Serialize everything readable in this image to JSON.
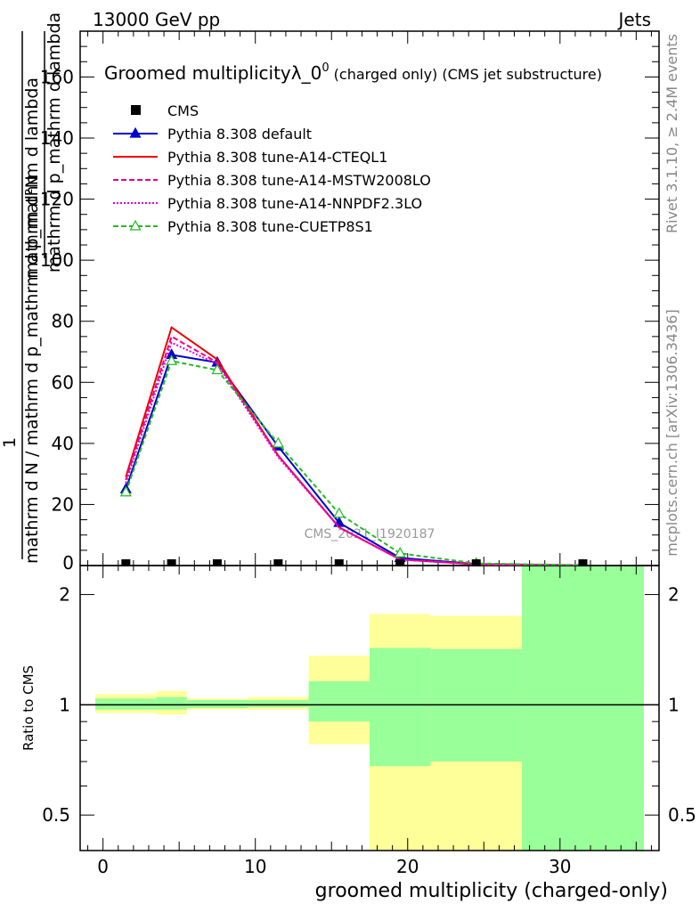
{
  "header": {
    "left": "13000 GeV pp",
    "right": "Jets"
  },
  "title": {
    "main": "Groomed multiplicityλ_0",
    "sup": "0",
    "suffix": " (charged only) (CMS jet substructure)"
  },
  "ylabel_top": {
    "numerator": "mathrm d²N",
    "denominator": "mathrm d p_mathrm d lambda"
  },
  "ylabel_full": {
    "numerator": "1",
    "denominator": "mathrm d N / mathrm d p_mathrm d p_mathrm d lambda"
  },
  "ratio_ylabel": "Ratio to CMS",
  "xlabel": "groomed multiplicity (charged-only)",
  "side_labels": {
    "rivet": "Rivet 3.1.10, ≥ 2.4M events",
    "mcplots": "mcplots.cern.ch [arXiv:1306.3436]"
  },
  "watermark": "CMS_2021_I1920187",
  "legend": [
    {
      "label": "CMS",
      "color": "#000000",
      "style": "square"
    },
    {
      "label": "Pythia 8.308 default",
      "color": "#0000cc",
      "style": "solid-triangle"
    },
    {
      "label": "Pythia 8.308 tune-A14-CTEQL1",
      "color": "#ee0000",
      "style": "solid"
    },
    {
      "label": "Pythia 8.308 tune-A14-MSTW2008LO",
      "color": "#ee0088",
      "style": "dashed"
    },
    {
      "label": "Pythia 8.308 tune-A14-NNPDF2.3LO",
      "color": "#dd00dd",
      "style": "dotted"
    },
    {
      "label": "Pythia 8.308 tune-CUETP8S1",
      "color": "#22bb22",
      "style": "dashed-open-triangle"
    }
  ],
  "chart_data": {
    "type": "line",
    "x": [
      1.5,
      4.5,
      7.5,
      11.5,
      15.5,
      19.5,
      24.5,
      31.5
    ],
    "bin_edges": [
      -0.5,
      3.5,
      5.5,
      9.5,
      13.5,
      17.5,
      21.5,
      27.5,
      35.5
    ],
    "xlim": [
      -1.5,
      36.5
    ],
    "ylim": [
      0,
      175
    ],
    "yticks": [
      20,
      40,
      60,
      80,
      100,
      120,
      140,
      160
    ],
    "xticks": [
      0,
      10,
      20,
      30
    ],
    "grid": false,
    "legend_position": "top-left",
    "data": {
      "name": "CMS",
      "values": [
        0.3,
        0.3,
        0.3,
        0.3,
        0.3,
        0.3,
        0.2,
        0.2
      ]
    },
    "series": [
      {
        "name": "Pythia 8.308 default",
        "color": "#0000cc",
        "dash": "",
        "marker": "filled-triangle",
        "values": [
          25,
          69,
          66.5,
          39,
          14,
          2.5,
          0.5,
          0.1
        ]
      },
      {
        "name": "Pythia 8.308 tune-A14-CTEQL1",
        "color": "#ee0000",
        "dash": "",
        "marker": "none",
        "values": [
          29,
          78,
          67.5,
          36,
          12.5,
          2,
          0.4,
          0.1
        ]
      },
      {
        "name": "Pythia 8.308 tune-A14-MSTW2008LO",
        "color": "#ee0088",
        "dash": "6,3",
        "marker": "none",
        "values": [
          28,
          75,
          66.5,
          36,
          12.5,
          2,
          0.4,
          0.1
        ]
      },
      {
        "name": "Pythia 8.308 tune-A14-NNPDF2.3LO",
        "color": "#dd00dd",
        "dash": "2,2",
        "marker": "none",
        "values": [
          27,
          73,
          66,
          35.5,
          12.5,
          2,
          0.4,
          0.1
        ]
      },
      {
        "name": "Pythia 8.308 tune-CUETP8S1",
        "color": "#22bb22",
        "dash": "5,3",
        "marker": "open-triangle",
        "values": [
          24,
          67,
          64,
          40,
          17,
          4,
          0.7,
          0.1
        ]
      }
    ],
    "ratio": {
      "ylabel": "Ratio to CMS",
      "ylim": [
        0.4,
        2.4
      ],
      "yticks": [
        0.5,
        1,
        2
      ],
      "scale": "log",
      "band_outer": [
        [
          0.95,
          1.07
        ],
        [
          0.94,
          1.09
        ],
        [
          0.97,
          1.04
        ],
        [
          0.97,
          1.05
        ],
        [
          0.78,
          1.36
        ],
        [
          0.28,
          1.77
        ],
        [
          0.3,
          1.75
        ],
        [
          0.1,
          10
        ]
      ],
      "band_inner": [
        [
          0.97,
          1.04
        ],
        [
          0.97,
          1.05
        ],
        [
          0.98,
          1.03
        ],
        [
          0.985,
          1.03
        ],
        [
          0.9,
          1.16
        ],
        [
          0.68,
          1.43
        ],
        [
          0.7,
          1.42
        ],
        [
          0.1,
          10
        ]
      ]
    }
  }
}
